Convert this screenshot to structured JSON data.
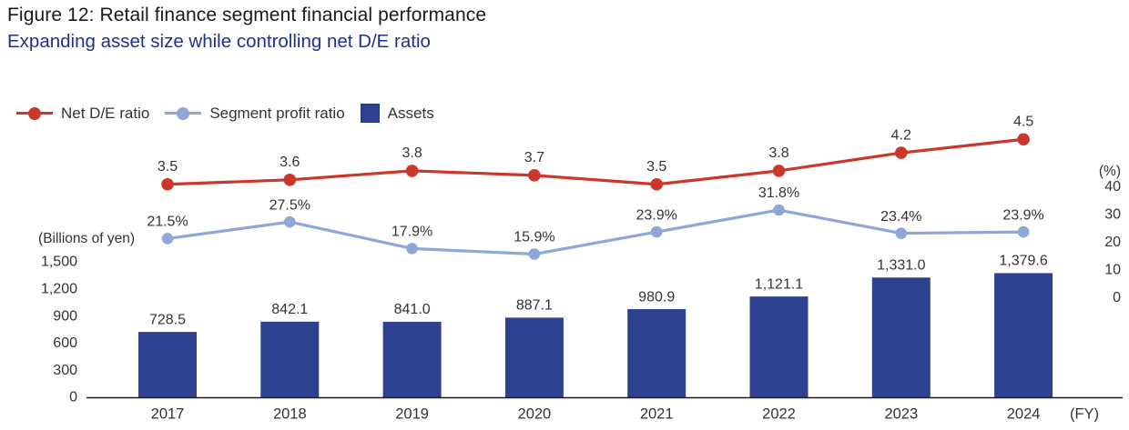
{
  "figure": {
    "title": "Figure 12: Retail finance segment financial performance",
    "subtitle": "Expanding asset size while controlling net D/E ratio"
  },
  "legend": [
    {
      "label": "Net D/E ratio",
      "marker": "line-dot",
      "color": "#cb372b"
    },
    {
      "label": "Segment profit ratio",
      "marker": "line-dot",
      "color": "#8fa6d8"
    },
    {
      "label": "Assets",
      "marker": "square",
      "color": "#2e4190"
    }
  ],
  "colors": {
    "net_de_ratio": "#cb372b",
    "segment_profit_ratio": "#8fa6d8",
    "assets": "#2e4190",
    "subtitle_blue": "#1c3192",
    "text": "#333333",
    "axis": "#1a1a1a"
  },
  "chart_data": {
    "type": "bar",
    "subtype": "combo-bar-and-lines",
    "categories": [
      "2017",
      "2018",
      "2019",
      "2020",
      "2021",
      "2022",
      "2023",
      "2024"
    ],
    "series": [
      {
        "name": "Assets",
        "type": "bar",
        "axis": "left",
        "color": "#2e4190",
        "values": [
          728.5,
          842.1,
          841.0,
          887.1,
          980.9,
          1121.1,
          1331.0,
          1379.6
        ],
        "labels": [
          "728.5",
          "842.1",
          "841.0",
          "887.1",
          "980.9",
          "1,121.1",
          "1,331.0",
          "1,379.6"
        ]
      },
      {
        "name": "Segment profit ratio",
        "type": "line",
        "axis": "right",
        "color": "#8fa6d8",
        "values": [
          21.5,
          27.5,
          17.9,
          15.9,
          23.9,
          31.8,
          23.4,
          23.9
        ],
        "labels": [
          "21.5%",
          "27.5%",
          "17.9%",
          "15.9%",
          "23.9%",
          "31.8%",
          "23.4%",
          "23.9%"
        ]
      },
      {
        "name": "Net D/E ratio",
        "type": "line",
        "axis": "none-shown",
        "color": "#cb372b",
        "values": [
          3.5,
          3.6,
          3.8,
          3.7,
          3.5,
          3.8,
          4.2,
          4.5
        ],
        "labels": [
          "3.5",
          "3.6",
          "3.8",
          "3.7",
          "3.5",
          "3.8",
          "4.2",
          "4.5"
        ]
      }
    ],
    "left_axis": {
      "unit_label": "(Billions of yen)",
      "range": [
        0,
        1500
      ],
      "ticks": [
        {
          "label": "1,500",
          "value": 1500
        },
        {
          "label": "1,200",
          "value": 1200
        },
        {
          "label": "900",
          "value": 900
        },
        {
          "label": "600",
          "value": 600
        },
        {
          "label": "300",
          "value": 300
        },
        {
          "label": "0",
          "value": 0
        }
      ]
    },
    "right_axis": {
      "unit_label": "(%)",
      "range": [
        0,
        40
      ],
      "ticks": [
        {
          "label": "40",
          "value": 40
        },
        {
          "label": "30",
          "value": 30
        },
        {
          "label": "20",
          "value": 20
        },
        {
          "label": "10",
          "value": 10
        },
        {
          "label": "0",
          "value": 0
        }
      ]
    },
    "x_axis": {
      "unit_label": "(FY)"
    },
    "grid": false,
    "legend_position": "top-left"
  }
}
